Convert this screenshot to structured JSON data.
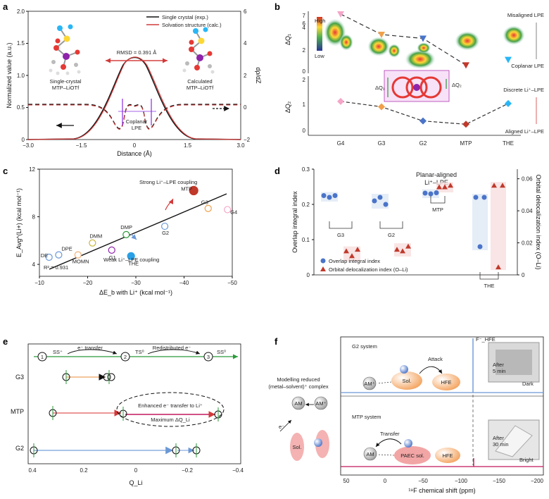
{
  "panels": {
    "a": {
      "label": "a",
      "xlabel": "Distance (Å)",
      "ylabel_left": "Normalized value (a.u.)",
      "ylabel_right": "dρ/dZ",
      "xticks": [
        "−3.0",
        "−1.5",
        "0",
        "1.5",
        "3.0"
      ],
      "yticks_left": [
        "0",
        "0.5",
        "1.0",
        "1.5",
        "2.0"
      ],
      "yticks_right": [
        "−2",
        "0",
        "2",
        "4",
        "6"
      ],
      "legend": [
        "Single crystal (exp.)",
        "Solvation structure (calc.)"
      ],
      "left_mol_label": [
        "Single-crystal",
        "MTP–LiOTf"
      ],
      "right_mol_label": [
        "Calculated",
        "MTP–LiOTf"
      ],
      "rmsd": "RMSD = 0.391 Å",
      "coplanar": [
        "Coplanar",
        "LPE"
      ],
      "colors": {
        "exp": "#111111",
        "calc": "#d23a3a",
        "coplanar": "#8a2be2"
      }
    },
    "b": {
      "label": "b",
      "ylabel_top": "ΔQ₁",
      "ylabel_bottom": "ΔQ₂",
      "categories": [
        "G4",
        "G3",
        "G2",
        "MTP",
        "THE"
      ],
      "colorbar": [
        "High",
        "Low"
      ],
      "top_yticks": [
        "0",
        "2",
        "4",
        "6",
        "7"
      ],
      "bottom_yticks": [
        "0",
        "1",
        "2"
      ],
      "right_top": [
        "Misaligned LPE",
        "Coplanar LPE"
      ],
      "right_bottom": [
        "Discrete Li⁺–LPE",
        "Aligned Li⁺–LPE"
      ],
      "inset": [
        "ΔQ₁",
        "ΔQ₂"
      ]
    },
    "c": {
      "label": "c",
      "xlabel": "ΔE_b with Li⁺ (kcal mol⁻¹)",
      "ylabel": "E_Avg^(Li+) (kcal mol⁻¹)",
      "xticks": [
        "−10",
        "−20",
        "−30",
        "−40",
        "−50"
      ],
      "yticks": [
        "4",
        "8",
        "12"
      ],
      "r2": "R² = 0.931",
      "strong": "Strong Li⁺–LPE coupling",
      "weak": "Weak Li⁺–LPE coupling"
    },
    "d": {
      "label": "d",
      "ylabel_left": "Overlap integral index",
      "ylabel_right": "Orbital delocalization index (O–Li)",
      "yticks_left": [
        "0",
        "0.1",
        "0.2",
        "0.3"
      ],
      "yticks_right": [
        "0",
        "0.02",
        "0.04",
        "0.06"
      ],
      "title": [
        "Planar-aligned",
        "Li⁺–LPE"
      ],
      "legend": [
        "Overlap integral index",
        "Orbital delocalization index (O–Li)"
      ],
      "group_labels": [
        "G3",
        "G2",
        "MTP",
        "THE"
      ]
    },
    "e": {
      "label": "e",
      "xlabel": "Q_Li",
      "xticks": [
        "0.4",
        "0.2",
        "0",
        "−0.2",
        "−0.4"
      ],
      "rows": [
        "G3",
        "MTP",
        "G2"
      ],
      "steps": [
        "SS⁺",
        "e⁻ transfer",
        "TS⁰",
        "Redistributed e⁻",
        "SS⁰"
      ],
      "step_nums": [
        "1",
        "2",
        "3"
      ],
      "ellipse": [
        "Enhanced e⁻ transfer to Li⁺",
        "Maximum ΔQ_Li"
      ]
    },
    "f": {
      "label": "f",
      "xlabel": "¹⁹F chemical shift (ppm)",
      "xticks": [
        "50",
        "0",
        "−50",
        "−100",
        "−150",
        "−200"
      ],
      "peak_label": "F⁻_HFE",
      "model": [
        "Modelling reduced",
        "(metal–solvent)⁺ complex"
      ],
      "g2": {
        "title": "G2 system",
        "attack": "Attack",
        "after": [
          "After",
          "5 min"
        ],
        "state": "Dark"
      },
      "mtp": {
        "title": "MTP system",
        "transfer": "Transfer",
        "after": [
          "After",
          "30 min"
        ],
        "state": "Bright"
      },
      "species": [
        "AM",
        "Sol.",
        "HFE",
        "PAEC sol."
      ],
      "am_plus": "AM⁺",
      "e_minus": "e⁻"
    }
  },
  "chart_data": [
    {
      "type": "line",
      "panel": "a",
      "xlim": [
        -3,
        3
      ],
      "ylim": [
        0,
        2
      ],
      "ylim_right": [
        -2,
        6
      ],
      "series": [
        {
          "name": "Single crystal (exp.)",
          "x": [
            -3,
            -1.5,
            -1,
            -0.5,
            0,
            0.5,
            1,
            1.5,
            3
          ],
          "y": [
            0,
            0.02,
            0.2,
            0.75,
            1.0,
            0.75,
            0.2,
            0.02,
            0
          ]
        },
        {
          "name": "Solvation structure (calc.)",
          "x": [
            -3,
            -1.5,
            -1,
            -0.5,
            0,
            0.5,
            1,
            1.5,
            3
          ],
          "y": [
            0,
            0.02,
            0.21,
            0.76,
            1.0,
            0.74,
            0.19,
            0.02,
            0
          ]
        }
      ]
    },
    {
      "type": "line",
      "panel": "b",
      "categories": [
        "G4",
        "G3",
        "G2",
        "MTP",
        "THE"
      ],
      "series": [
        {
          "values": [
            7,
            4.4,
            3.9,
            0.5,
            1.2
          ]
        },
        {
          "values": [
            1.3,
            1.05,
            0.4,
            0.25,
            1.2
          ]
        }
      ]
    },
    {
      "type": "scatter",
      "panel": "c",
      "xlim": [
        -10,
        -50
      ],
      "ylim": [
        3,
        12
      ],
      "points": [
        {
          "label": "DE",
          "x": -12,
          "y": 4.6
        },
        {
          "label": "DPE",
          "x": -14,
          "y": 4.8
        },
        {
          "label": "MOMN",
          "x": -18,
          "y": 4.8
        },
        {
          "label": "DMM",
          "x": -21,
          "y": 5.8
        },
        {
          "label": "DMP",
          "x": -28,
          "y": 6.5
        },
        {
          "label": "G1",
          "x": -25,
          "y": 5.2
        },
        {
          "label": "THE",
          "x": -29,
          "y": 4.7
        },
        {
          "label": "G2",
          "x": -36,
          "y": 7.2
        },
        {
          "label": "MTP",
          "x": -42,
          "y": 10.2
        },
        {
          "label": "G3",
          "x": -45,
          "y": 8.7
        },
        {
          "label": "G4",
          "x": -49,
          "y": 8.6
        }
      ]
    },
    {
      "type": "scatter",
      "panel": "d",
      "ylim": [
        0,
        0.3
      ],
      "series": [
        {
          "name": "Overlap integral index",
          "groups": [
            "G3",
            "G2",
            "MTP",
            "THE"
          ],
          "values": [
            [
              0.225,
              0.22,
              0.225
            ],
            [
              0.21,
              0.22,
              0.2
            ],
            [
              0.232,
              0.23,
              0.233
            ],
            [
              0.22,
              0.08,
              0.22
            ]
          ]
        },
        {
          "name": "Orbital delocalization index (O–Li)",
          "groups": [
            "G3",
            "G2",
            "MTP",
            "THE"
          ],
          "values": [
            [
              0.015,
              0.012,
              0.016
            ],
            [
              0.016,
              0.015,
              0.018
            ],
            [
              0.055,
              0.055,
              0.056
            ],
            [
              0.056,
              0.005,
              0.056
            ]
          ]
        }
      ]
    }
  ]
}
